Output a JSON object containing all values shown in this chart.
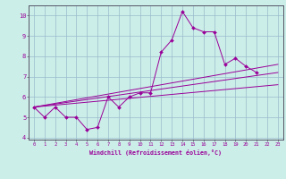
{
  "xlabel": "Windchill (Refroidissement éolien,°C)",
  "x_values": [
    0,
    1,
    2,
    3,
    4,
    5,
    6,
    7,
    8,
    9,
    10,
    11,
    12,
    13,
    14,
    15,
    16,
    17,
    18,
    19,
    20,
    21,
    22,
    23
  ],
  "line1_y": [
    5.5,
    5.0,
    5.5,
    5.0,
    5.0,
    4.4,
    4.5,
    6.0,
    5.5,
    6.0,
    6.2,
    6.2,
    8.2,
    8.8,
    10.2,
    9.4,
    9.2,
    9.2,
    7.6,
    7.9,
    7.5,
    7.2,
    null,
    null
  ],
  "straight_lines": [
    [
      5.5,
      7.6
    ],
    [
      5.5,
      7.2
    ],
    [
      5.5,
      6.6
    ]
  ],
  "bg_color": "#cceee8",
  "grid_color": "#99bbcc",
  "line_color": "#990099",
  "axis_color": "#555566",
  "tick_color": "#990099",
  "ylim": [
    3.9,
    10.5
  ],
  "xlim": [
    -0.5,
    23.5
  ],
  "yticks": [
    4,
    5,
    6,
    7,
    8,
    9,
    10
  ],
  "xticks": [
    0,
    1,
    2,
    3,
    4,
    5,
    6,
    7,
    8,
    9,
    10,
    11,
    12,
    13,
    14,
    15,
    16,
    17,
    18,
    19,
    20,
    21,
    22,
    23
  ]
}
